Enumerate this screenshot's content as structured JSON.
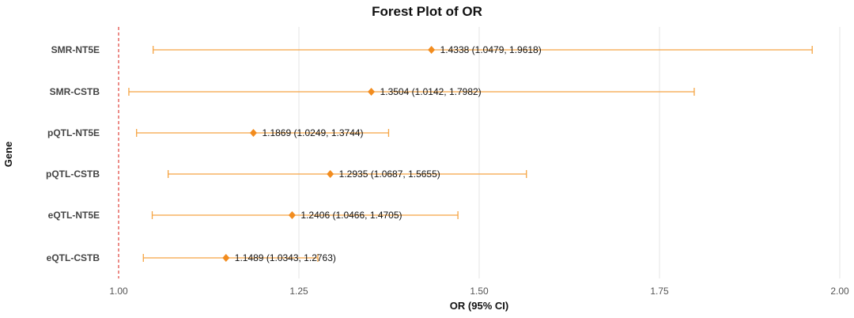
{
  "chart_data": {
    "type": "forest",
    "title": "Forest Plot of OR",
    "xlabel": "OR (95% CI)",
    "ylabel": "Gene",
    "xlim": [
      1.0,
      2.0
    ],
    "xticks": [
      "1.00",
      "1.25",
      "1.50",
      "1.75",
      "2.00"
    ],
    "reference_line": 1.0,
    "grid": "vertical major",
    "colors": {
      "point": "#F28C1E",
      "ci": "#F5A443",
      "ref": "#E0413A",
      "grid": "#E6E6E6"
    },
    "rows": [
      {
        "gene": "SMR-NT5E",
        "or": 1.4338,
        "lower": 1.0479,
        "upper": 1.9618,
        "label": "1.4338 (1.0479, 1.9618)"
      },
      {
        "gene": "SMR-CSTB",
        "or": 1.3504,
        "lower": 1.0142,
        "upper": 1.7982,
        "label": "1.3504 (1.0142, 1.7982)"
      },
      {
        "gene": "pQTL-NT5E",
        "or": 1.1869,
        "lower": 1.0249,
        "upper": 1.3744,
        "label": "1.1869 (1.0249, 1.3744)"
      },
      {
        "gene": "pQTL-CSTB",
        "or": 1.2935,
        "lower": 1.0687,
        "upper": 1.5655,
        "label": "1.2935 (1.0687, 1.5655)"
      },
      {
        "gene": "eQTL-NT5E",
        "or": 1.2406,
        "lower": 1.0466,
        "upper": 1.4705,
        "label": "1.2406 (1.0466, 1.4705)"
      },
      {
        "gene": "eQTL-CSTB",
        "or": 1.1489,
        "lower": 1.0343,
        "upper": 1.2763,
        "label": "1.1489 (1.0343, 1.2763)"
      }
    ]
  }
}
